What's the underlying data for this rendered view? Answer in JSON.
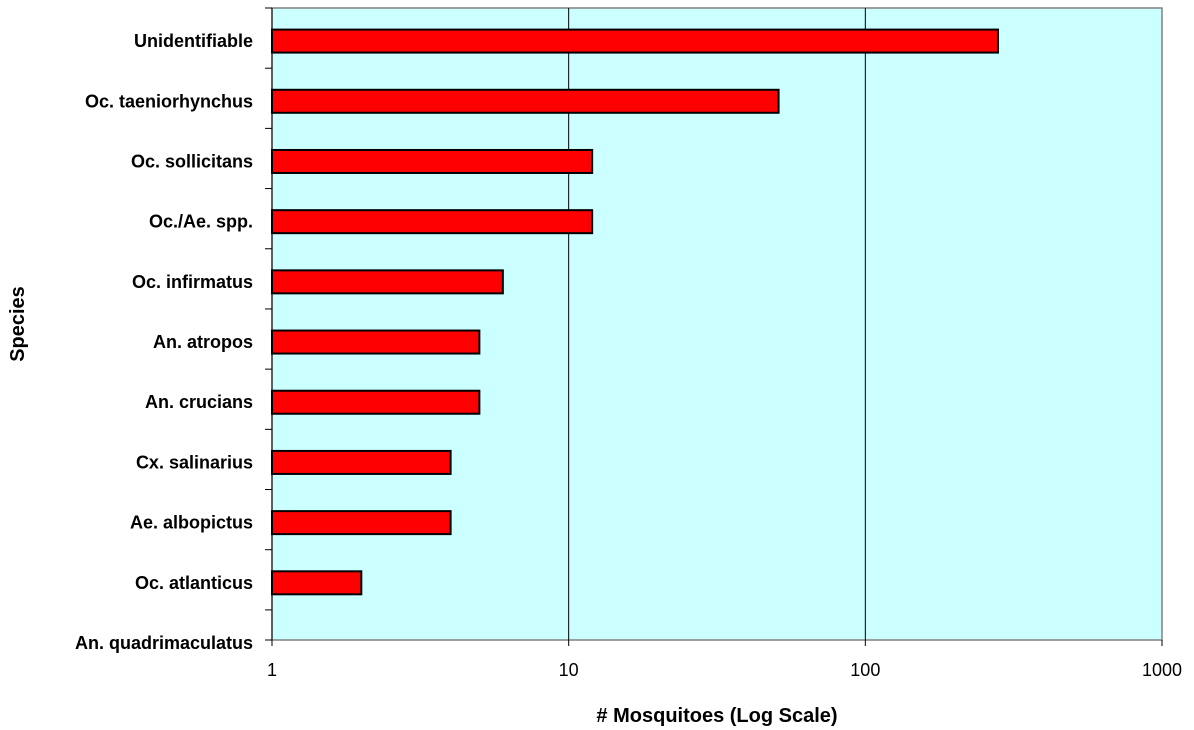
{
  "chart_data": {
    "type": "bar",
    "orientation": "horizontal",
    "categories": [
      "Unidentifiable",
      "Oc. taeniorhynchus",
      "Oc. sollicitans",
      "Oc./Ae. spp.",
      "Oc. infirmatus",
      "An. atropos",
      "An. crucians",
      "Cx. salinarius",
      "Ae. albopictus",
      "Oc. atlanticus",
      "An. quadrimaculatus"
    ],
    "values": [
      280,
      51,
      12,
      12,
      6,
      5,
      5,
      4,
      4,
      2,
      1
    ],
    "xlabel": "# Mosquitoes (Log Scale)",
    "ylabel": "Species",
    "x_scale": "log",
    "xlim": [
      1,
      1000
    ],
    "x_ticks": [
      "1",
      "10",
      "100",
      "1000"
    ],
    "grid": "vertical major gridlines",
    "legend": "none",
    "colors": {
      "plot_background": "#ccffff",
      "bar_fill": "#ff0000",
      "bar_stroke": "#000000",
      "gridline": "#000000"
    }
  }
}
